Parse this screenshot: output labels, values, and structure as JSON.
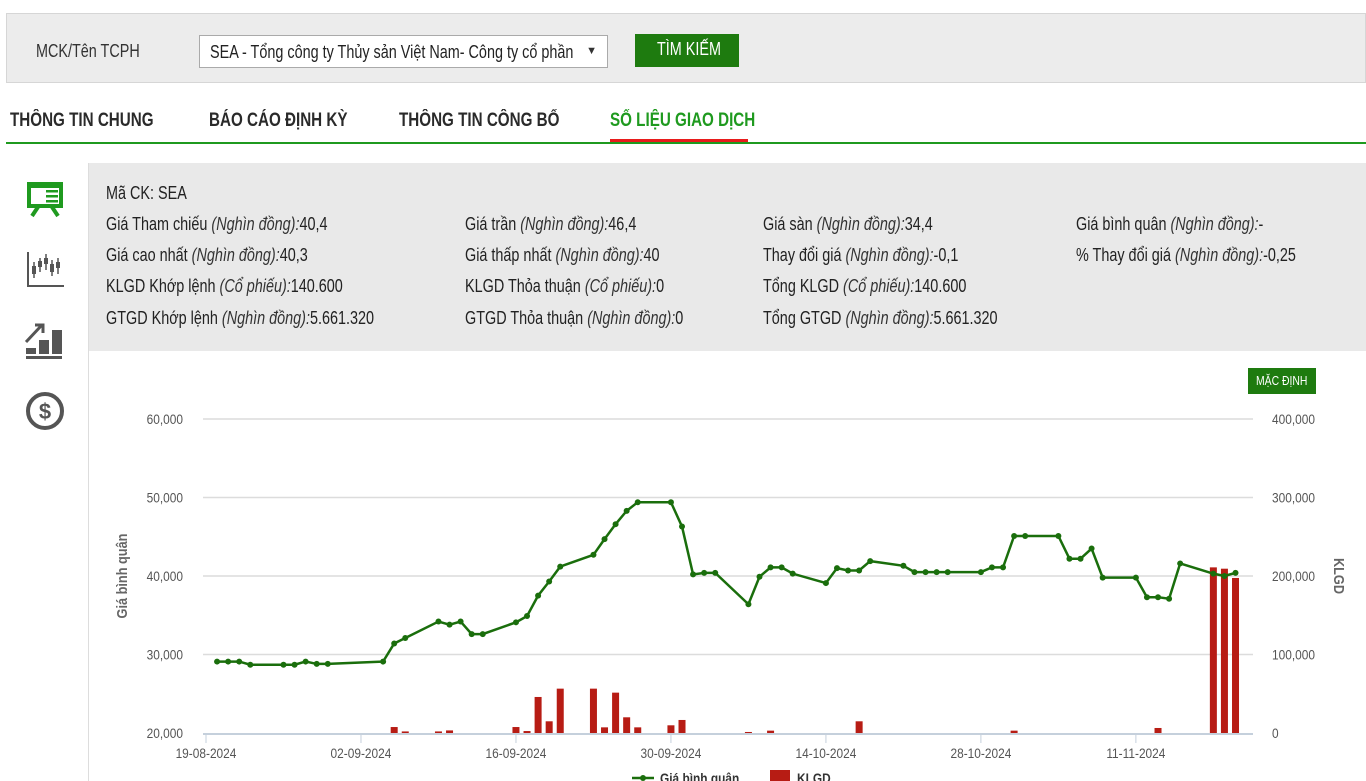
{
  "search": {
    "label": "MCK/Tên TCPH",
    "selected": "SEA - Tổng công ty Thủy sản Việt Nam- Công ty cổ phần",
    "button": "TÌM KIẾM"
  },
  "tabs": [
    {
      "label": "THÔNG TIN CHUNG"
    },
    {
      "label": "BÁO CÁO ĐỊNH KỲ"
    },
    {
      "label": "THÔNG TIN CÔNG BỐ"
    },
    {
      "label": "SỐ LIỆU GIAO DỊCH",
      "active": true
    }
  ],
  "sidebar": {
    "icons": [
      "presentation-board-icon",
      "candlestick-chart-icon",
      "growth-bar-chart-icon",
      "dollar-coin-icon"
    ],
    "active_color": "#1f9a1f"
  },
  "info": {
    "ma_ck": {
      "label": "Mã CK:",
      "value": "SEA"
    },
    "rows": [
      [
        {
          "label": "Giá Tham chiếu",
          "unit": "(Nghìn đồng):",
          "value": "40,4"
        },
        {
          "label": "Giá trần",
          "unit": "(Nghìn đồng):",
          "value": "46,4"
        },
        {
          "label": "Giá sàn",
          "unit": "(Nghìn đồng):",
          "value": "34,4"
        },
        {
          "label": "Giá bình quân",
          "unit": "(Nghìn đồng):",
          "value": "-"
        }
      ],
      [
        {
          "label": "Giá cao nhất",
          "unit": "(Nghìn đồng):",
          "value": "40,3"
        },
        {
          "label": "Giá thấp nhất",
          "unit": "(Nghìn đồng):",
          "value": "40"
        },
        {
          "label": "Thay đổi giá",
          "unit": "(Nghìn đồng):",
          "value": "-0,1"
        },
        {
          "label": "% Thay đổi giá",
          "unit": "(Nghìn đồng):",
          "value": "-0,25"
        }
      ],
      [
        {
          "label": "KLGD Khớp lệnh",
          "unit": "(Cổ phiếu):",
          "value": "140.600"
        },
        {
          "label": "KLGD Thỏa thuận",
          "unit": "(Cổ phiếu):",
          "value": "0"
        },
        {
          "label": "Tổng KLGD",
          "unit": "(Cổ phiếu):",
          "value": "140.600"
        }
      ],
      [
        {
          "label": "GTGD Khớp lệnh",
          "unit": "(Nghìn đồng):",
          "value": "5.661.320"
        },
        {
          "label": "GTGD Thỏa thuận",
          "unit": "(Nghìn đồng):",
          "value": "0"
        },
        {
          "label": "Tổng GTGD",
          "unit": "(Nghìn đồng):",
          "value": "5.661.320"
        }
      ]
    ]
  },
  "chart_controls": {
    "default_button": "MẶC ĐỊNH"
  },
  "chart_data": {
    "type": "line+bar",
    "ylabel_left": "Giá bình quân",
    "ylabel_right": "KLGD",
    "ylim_left": [
      20000,
      60000
    ],
    "ylim_right": [
      0,
      400000
    ],
    "yticks_left": [
      "20,000",
      "30,000",
      "40,000",
      "50,000",
      "60,000"
    ],
    "yticks_right": [
      "0",
      "100,000",
      "200,000",
      "300,000",
      "400,000"
    ],
    "xticks": [
      "19-08-2024",
      "02-09-2024",
      "16-09-2024",
      "30-09-2024",
      "14-10-2024",
      "28-10-2024",
      "11-11-2024"
    ],
    "xlim": [
      "19-08-2024",
      "21-11-2024"
    ],
    "grid": true,
    "legend": "bottom",
    "colors": {
      "line": "#1a6e0c",
      "bar": "#b71c14"
    },
    "series": [
      {
        "name": "Giá bình quân",
        "type": "line",
        "points": [
          [
            "20-08-2024",
            29100
          ],
          [
            "21-08-2024",
            29100
          ],
          [
            "22-08-2024",
            29100
          ],
          [
            "23-08-2024",
            28700
          ],
          [
            "26-08-2024",
            28700
          ],
          [
            "27-08-2024",
            28700
          ],
          [
            "28-08-2024",
            29100
          ],
          [
            "29-08-2024",
            28800
          ],
          [
            "30-08-2024",
            28800
          ],
          [
            "04-09-2024",
            29100
          ],
          [
            "05-09-2024",
            31400
          ],
          [
            "06-09-2024",
            32100
          ],
          [
            "09-09-2024",
            34200
          ],
          [
            "10-09-2024",
            33800
          ],
          [
            "11-09-2024",
            34200
          ],
          [
            "12-09-2024",
            32600
          ],
          [
            "13-09-2024",
            32600
          ],
          [
            "16-09-2024",
            34100
          ],
          [
            "17-09-2024",
            34900
          ],
          [
            "18-09-2024",
            37500
          ],
          [
            "19-09-2024",
            39300
          ],
          [
            "20-09-2024",
            41200
          ],
          [
            "23-09-2024",
            42700
          ],
          [
            "24-09-2024",
            44700
          ],
          [
            "25-09-2024",
            46600
          ],
          [
            "26-09-2024",
            48300
          ],
          [
            "27-09-2024",
            49400
          ],
          [
            "30-09-2024",
            49400
          ],
          [
            "01-10-2024",
            46300
          ],
          [
            "02-10-2024",
            40200
          ],
          [
            "03-10-2024",
            40400
          ],
          [
            "04-10-2024",
            40400
          ],
          [
            "07-10-2024",
            36400
          ],
          [
            "08-10-2024",
            39900
          ],
          [
            "09-10-2024",
            41100
          ],
          [
            "10-10-2024",
            41100
          ],
          [
            "11-10-2024",
            40300
          ],
          [
            "14-10-2024",
            39100
          ],
          [
            "15-10-2024",
            41000
          ],
          [
            "16-10-2024",
            40700
          ],
          [
            "17-10-2024",
            40700
          ],
          [
            "18-10-2024",
            41900
          ],
          [
            "21-10-2024",
            41300
          ],
          [
            "22-10-2024",
            40500
          ],
          [
            "23-10-2024",
            40500
          ],
          [
            "24-10-2024",
            40500
          ],
          [
            "25-10-2024",
            40500
          ],
          [
            "28-10-2024",
            40500
          ],
          [
            "29-10-2024",
            41100
          ],
          [
            "30-10-2024",
            41100
          ],
          [
            "31-10-2024",
            45100
          ],
          [
            "01-11-2024",
            45100
          ],
          [
            "04-11-2024",
            45100
          ],
          [
            "05-11-2024",
            42200
          ],
          [
            "06-11-2024",
            42200
          ],
          [
            "07-11-2024",
            43500
          ],
          [
            "08-11-2024",
            39800
          ],
          [
            "11-11-2024",
            39800
          ],
          [
            "12-11-2024",
            37300
          ],
          [
            "13-11-2024",
            37300
          ],
          [
            "14-11-2024",
            37100
          ],
          [
            "15-11-2024",
            41600
          ],
          [
            "18-11-2024",
            40300
          ],
          [
            "19-11-2024",
            40000
          ],
          [
            "20-11-2024",
            40400
          ]
        ]
      },
      {
        "name": "KLGD",
        "type": "bar",
        "points": [
          [
            "05-09-2024",
            7600
          ],
          [
            "06-09-2024",
            2000
          ],
          [
            "09-09-2024",
            2000
          ],
          [
            "10-09-2024",
            3300
          ],
          [
            "16-09-2024",
            7600
          ],
          [
            "17-09-2024",
            2500
          ],
          [
            "18-09-2024",
            45900
          ],
          [
            "19-09-2024",
            14900
          ],
          [
            "20-09-2024",
            56500
          ],
          [
            "23-09-2024",
            56500
          ],
          [
            "24-09-2024",
            7200
          ],
          [
            "25-09-2024",
            51400
          ],
          [
            "26-09-2024",
            20000
          ],
          [
            "27-09-2024",
            7200
          ],
          [
            "30-09-2024",
            9800
          ],
          [
            "01-10-2024",
            16600
          ],
          [
            "07-10-2024",
            1300
          ],
          [
            "09-10-2024",
            3000
          ],
          [
            "17-10-2024",
            14900
          ],
          [
            "31-10-2024",
            3000
          ],
          [
            "13-11-2024",
            6400
          ],
          [
            "18-11-2024",
            211000
          ],
          [
            "19-11-2024",
            209300
          ],
          [
            "20-11-2024",
            197500
          ]
        ]
      }
    ]
  }
}
